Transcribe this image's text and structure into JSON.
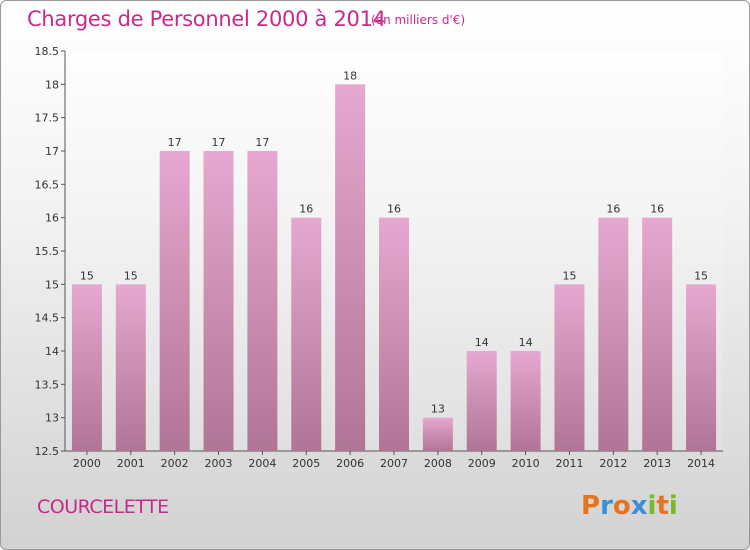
{
  "header": {
    "title": "Charges de Personnel 2000 à 2014",
    "subtitle": "(en milliers d'€)"
  },
  "footer": {
    "commune": "COURCELETTE",
    "logo": "Proxiti"
  },
  "colors": {
    "title": "#c72b8a",
    "bar_top": "#e6a8cf",
    "bar_bottom": "#b07596",
    "logo_letters": [
      "#e8731e",
      "#3a8fd6",
      "#e8731e",
      "#3a8fd6",
      "#7ab829",
      "#e8731e",
      "#7ab829"
    ]
  },
  "chart_data": {
    "type": "bar",
    "title": "Charges de Personnel 2000 à 2014",
    "xlabel": "",
    "ylabel": "",
    "categories": [
      "2000",
      "2001",
      "2002",
      "2003",
      "2004",
      "2005",
      "2006",
      "2007",
      "2008",
      "2009",
      "2010",
      "2011",
      "2012",
      "2013",
      "2014"
    ],
    "values": [
      15,
      15,
      17,
      17,
      17,
      16,
      18,
      16,
      13,
      14,
      14,
      15,
      16,
      16,
      15
    ],
    "value_labels": [
      "15",
      "15",
      "17",
      "17",
      "17",
      "16",
      "18",
      "16",
      "13",
      "14",
      "14",
      "15",
      "16",
      "16",
      "15"
    ],
    "yticks": [
      "12.5",
      "13",
      "13.5",
      "14",
      "14.5",
      "15",
      "15.5",
      "16",
      "16.5",
      "17",
      "17.5",
      "18",
      "18.5"
    ],
    "ylim": [
      12.5,
      18.5
    ],
    "grid": false,
    "legend": "none"
  }
}
